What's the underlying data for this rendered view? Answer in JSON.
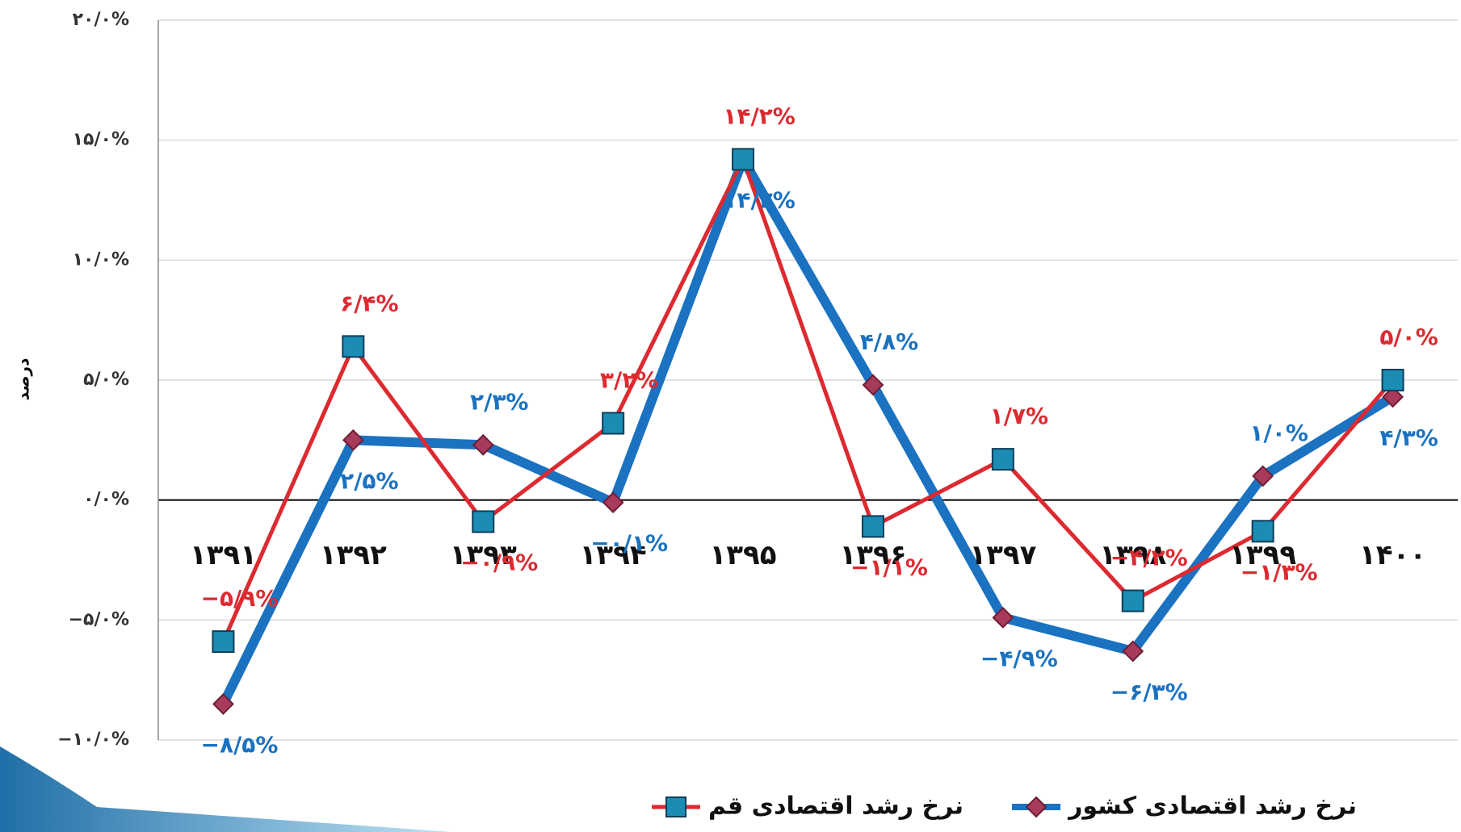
{
  "chart_data": {
    "type": "line",
    "y_label": "درصد",
    "categories": [
      "۱۳۹۱",
      "۱۳۹۲",
      "۱۳۹۳",
      "۱۳۹۴",
      "۱۳۹۵",
      "۱۳۹۶",
      "۱۳۹۷",
      "۱۳۹۸",
      "۱۳۹۹",
      "۱۴۰۰"
    ],
    "series": [
      {
        "name": "نرخ رشد اقتصادی کشور",
        "color": "#1a72c1",
        "marker": "diamond",
        "marker_color": "#a83a5a",
        "values": [
          -8.5,
          2.5,
          2.3,
          -0.1,
          14.2,
          4.8,
          -4.9,
          -6.3,
          1.0,
          4.3
        ],
        "value_labels": [
          "−۸/۵%",
          "۲/۵%",
          "۲/۳%",
          "−۰/۱%",
          "۱۴/۲%",
          "۴/۸%",
          "−۴/۹%",
          "−۶/۳%",
          "۱/۰%",
          "۴/۳%"
        ]
      },
      {
        "name": "نرخ رشد اقتصادی قم",
        "color": "#dc2a30",
        "marker": "square",
        "marker_color": "#1b8db4",
        "values": [
          -5.9,
          6.4,
          -0.9,
          3.2,
          14.2,
          -1.1,
          1.7,
          -4.2,
          -1.3,
          5.0
        ],
        "value_labels": [
          "−۵/۹%",
          "۶/۴%",
          "−۰/۹%",
          "۳/۲%",
          "۱۴/۲%",
          "−۱/۱%",
          "۱/۷%",
          "−۴/۲%",
          "−۱/۳%",
          "۵/۰%"
        ]
      }
    ],
    "ylim": [
      -10,
      20
    ],
    "yticks": [
      {
        "value": -10,
        "label": "−۱۰/۰%"
      },
      {
        "value": -5,
        "label": "−۵/۰%"
      },
      {
        "value": 0,
        "label": "۰/۰%"
      },
      {
        "value": 5,
        "label": "۵/۰%"
      },
      {
        "value": 10,
        "label": "۱۰/۰%"
      },
      {
        "value": 15,
        "label": "۱۵/۰%"
      },
      {
        "value": 20,
        "label": "۲۰/۰%"
      }
    ],
    "grid": true
  }
}
